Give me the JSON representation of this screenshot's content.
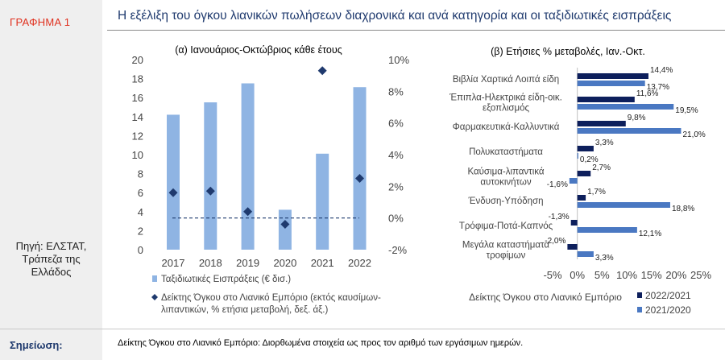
{
  "graph_label": "ΓΡΑΦΗΜΑ 1",
  "source": [
    "Πηγή: ΕΛΣΤΑΤ,",
    "Τράπεζα της",
    "Ελλάδος"
  ],
  "title": "Η εξέλιξη του όγκου λιανικών πωλήσεων διαχρονικά και ανά κατηγορία και οι ταξιδιωτικές εισπράξεις",
  "note_label": "Σημείωση:",
  "note_text": "Δείκτης Όγκου στο Λιανικό Εμπόριο: Διορθωμένα στοιχεία ως προς τον αριθμό των εργάσιμων ημερών.",
  "colors": {
    "bar_light": "#8fb4e3",
    "marker_dark": "#1f3a6e",
    "bar_dark": "#0d1f5c",
    "bar_mid": "#4a78c2",
    "title": "#1f3a6e",
    "red": "#e0301e"
  },
  "chart_data": [
    {
      "type": "bar",
      "title": "(α) Ιανουάριος-Οκτώβριος κάθε έτους",
      "categories": [
        "2017",
        "2018",
        "2019",
        "2020",
        "2021",
        "2022"
      ],
      "y_left_ticks": [
        "0",
        "2",
        "4",
        "6",
        "8",
        "10",
        "12",
        "14",
        "16",
        "18",
        "20"
      ],
      "y_right_ticks": [
        "-2%",
        "0%",
        "2%",
        "4%",
        "6%",
        "8%",
        "10%"
      ],
      "ylim_left": [
        0,
        20
      ],
      "ylim_right": [
        -2,
        10
      ],
      "series": [
        {
          "name": "Ταξιδιωτικές Εισπράξεις (€ δισ.)",
          "axis": "left",
          "kind": "bar",
          "values": [
            14.2,
            15.5,
            17.5,
            4.2,
            10.1,
            17.1
          ]
        },
        {
          "name": "Δείκτης Όγκου στο Λιανικό Εμπόριο (εκτός καυσίμων-λιπαντικών, % ετήσια μεταβολή, δεξ. άξ.)",
          "axis": "right",
          "kind": "marker",
          "values": [
            1.6,
            1.7,
            0.4,
            -0.4,
            9.3,
            2.5
          ]
        }
      ],
      "legend": [
        {
          "text": [
            "Ταξιδιωτικές Εισπράξεις (€ δισ.)"
          ]
        },
        {
          "text": [
            "Δείκτης Όγκου στο Λιανικό Εμπόριο (εκτός καυσίμων-",
            "λιπαντικών, % ετήσια μεταβολή, δεξ. άξ.)"
          ]
        }
      ]
    },
    {
      "type": "bar",
      "orientation": "horizontal",
      "title": "(β) Ετήσιες % μεταβολές, Ιαν.-Οκτ.",
      "categories": [
        [
          "Βιβλία Χαρτικά Λοιπά είδη"
        ],
        [
          "Έπιπλα-Ηλεκτρικά είδη-οικ.",
          "εξοπλισμός"
        ],
        [
          "Φαρμακευτικά-Καλλυντικά"
        ],
        [
          "Πολυκαταστήματα"
        ],
        [
          "Καύσιμα-λιπαντικά",
          "αυτοκινήτων"
        ],
        [
          "Ένδυση-Υπόδηση"
        ],
        [
          "Τρόφιμα-Ποτά-Καπνός"
        ],
        [
          "Μεγάλα καταστήματα",
          "τροφίμων"
        ]
      ],
      "xlim": [
        -5,
        25
      ],
      "x_ticks": [
        "-5%",
        "0%",
        "5%",
        "10%",
        "15%",
        "20%",
        "25%"
      ],
      "series": [
        {
          "name": "2022/2021",
          "values": [
            14.4,
            11.6,
            9.8,
            3.3,
            2.7,
            1.7,
            -1.3,
            -2.0
          ],
          "labels": [
            "14,4%",
            "11,6%",
            "9,8%",
            "3,3%",
            "2,7%",
            "1,7%",
            "-1,3%",
            "-2,0%"
          ]
        },
        {
          "name": "2021/2020",
          "values": [
            13.7,
            19.5,
            21.0,
            0.2,
            -1.6,
            18.8,
            12.1,
            3.3
          ],
          "labels": [
            "13,7%",
            "19,5%",
            "21,0%",
            "0,2%",
            "-1,6%",
            "18,8%",
            "12,1%",
            "3,3%"
          ]
        }
      ],
      "legend_title": "Δείκτης Όγκου στο Λιανικό Εμπόριο"
    }
  ]
}
